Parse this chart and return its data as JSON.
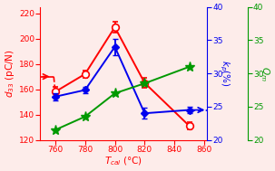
{
  "x": [
    760,
    780,
    800,
    820,
    850
  ],
  "d33": [
    158,
    172,
    209,
    165,
    131
  ],
  "d33_err": [
    4,
    3,
    4,
    4,
    3
  ],
  "kp": [
    26.5,
    27.5,
    34,
    24,
    24.5
  ],
  "kp_err": [
    0.5,
    0.5,
    1.2,
    0.8,
    0.5
  ],
  "Qm": [
    21.5,
    23.5,
    27,
    28.5,
    31
  ],
  "xlim": [
    750,
    862
  ],
  "ylim_left": [
    120,
    225
  ],
  "ylim_right": [
    20,
    40
  ],
  "yticks_left": [
    120,
    140,
    160,
    180,
    200,
    220
  ],
  "yticks_right": [
    20,
    25,
    30,
    35,
    40
  ],
  "xticks": [
    760,
    780,
    800,
    820,
    840,
    860
  ],
  "color_red": "#FF0000",
  "color_blue": "#0000EE",
  "color_green": "#009900",
  "bg_color": "#FDECEA"
}
